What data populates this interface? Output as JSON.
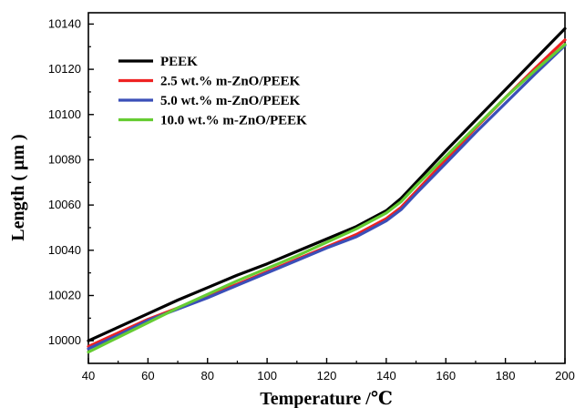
{
  "chart_data": {
    "type": "line",
    "title": "",
    "xlabel": "Temperature /℃",
    "ylabel": "Length ( μm )",
    "xlim": [
      40,
      200
    ],
    "ylim": [
      9990,
      10145
    ],
    "x_ticks": [
      40,
      60,
      80,
      100,
      120,
      140,
      160,
      180,
      200
    ],
    "y_ticks": [
      10000,
      10020,
      10040,
      10060,
      10080,
      10100,
      10120,
      10140
    ],
    "grid": false,
    "legend_position": "top-left",
    "series": [
      {
        "name": "PEEK",
        "color": "#000000",
        "x": [
          40,
          50,
          60,
          70,
          80,
          90,
          100,
          110,
          120,
          130,
          140,
          145,
          150,
          160,
          170,
          180,
          190,
          200
        ],
        "y": [
          10000,
          10006,
          10012,
          10018,
          10023.5,
          10029,
          10034,
          10039.5,
          10045,
          10050.5,
          10057.5,
          10063,
          10070,
          10084,
          10097.5,
          10111,
          10124.5,
          10138
        ]
      },
      {
        "name": "2.5 wt.% m-ZnO/PEEK",
        "color": "#ee2222",
        "x": [
          40,
          50,
          60,
          70,
          80,
          90,
          100,
          110,
          120,
          130,
          140,
          145,
          150,
          160,
          170,
          180,
          190,
          200
        ],
        "y": [
          9997.5,
          10003.5,
          10009.5,
          10014.5,
          10020,
          10025,
          10030.5,
          10036,
          10041.5,
          10047,
          10054,
          10059,
          10066,
          10080,
          10094,
          10107.5,
          10120.5,
          10133
        ]
      },
      {
        "name": "5.0 wt.% m-ZnO/PEEK",
        "color": "#3b4fb8",
        "x": [
          40,
          50,
          60,
          70,
          80,
          90,
          100,
          110,
          120,
          130,
          140,
          145,
          150,
          160,
          170,
          180,
          190,
          200
        ],
        "y": [
          9996.5,
          10002.5,
          10009,
          10014,
          10019,
          10024.5,
          10030,
          10035.5,
          10041,
          10046,
          10053,
          10058,
          10065,
          10078.5,
          10092,
          10105,
          10118,
          10130.5
        ]
      },
      {
        "name": "10.0 wt.% m-ZnO/PEEK",
        "color": "#66cc33",
        "x": [
          40,
          50,
          60,
          70,
          80,
          90,
          100,
          110,
          120,
          130,
          140,
          145,
          150,
          160,
          170,
          180,
          190,
          200
        ],
        "y": [
          9995,
          10001.5,
          10008,
          10014.5,
          10020.5,
          10026.5,
          10032,
          10037.5,
          10043.5,
          10049.5,
          10056.5,
          10061.5,
          10068.5,
          10081.5,
          10094.5,
          10107.5,
          10119.5,
          10131
        ]
      }
    ]
  }
}
